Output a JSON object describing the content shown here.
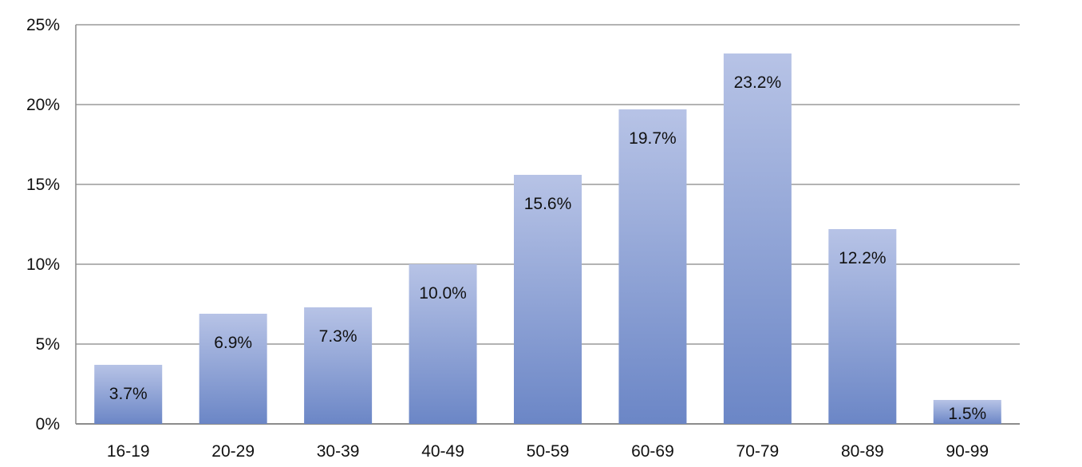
{
  "chart_data": {
    "type": "bar",
    "title": "",
    "xlabel": "",
    "ylabel": "",
    "categories": [
      "16-19",
      "20-29",
      "30-39",
      "40-49",
      "50-59",
      "60-69",
      "70-79",
      "80-89",
      "90-99"
    ],
    "values": [
      3.7,
      6.9,
      7.3,
      10.0,
      15.6,
      19.7,
      23.2,
      12.2,
      1.5
    ],
    "data_labels": [
      "3.7%",
      "6.9%",
      "7.3%",
      "10.0%",
      "15.6%",
      "19.7%",
      "23.2%",
      "12.2%",
      "1.5%"
    ],
    "ylim": [
      0,
      25
    ],
    "yticks": [
      0,
      5,
      10,
      15,
      20,
      25
    ],
    "ytick_labels": [
      "0%",
      "5%",
      "10%",
      "15%",
      "20%",
      "25%"
    ],
    "grid": true,
    "legend": "none",
    "colors": {
      "bar_top": "#b7c3e6",
      "bar_bottom": "#6b86c6",
      "gridline": "#b3b3b3",
      "axis": "#8c8c8c"
    }
  }
}
